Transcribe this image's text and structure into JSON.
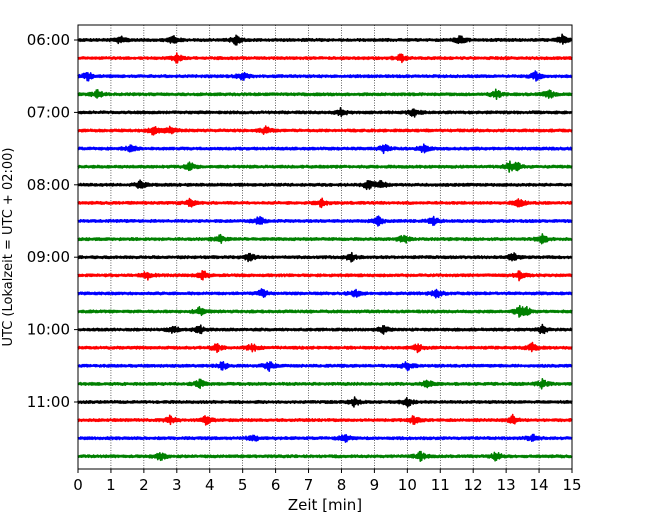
{
  "chart_data": {
    "type": "line",
    "xlabel": "Zeit  [min]",
    "ylabel": "UTC (Lokalzeit = UTC + 02:00)",
    "xlim": [
      0,
      15
    ],
    "x_ticks": [
      "0",
      "1",
      "2",
      "3",
      "4",
      "5",
      "6",
      "7",
      "8",
      "9",
      "10",
      "11",
      "12",
      "13",
      "14",
      "15"
    ],
    "y_ticks": [
      "06:00",
      "07:00",
      "08:00",
      "09:00",
      "10:00",
      "11:00"
    ],
    "grid": "vertical dotted at each minute",
    "trace_interval_min": 15,
    "color_cycle": [
      "#000000",
      "#ff0000",
      "#0000ff",
      "#008000"
    ],
    "traces": [
      {
        "start": "06:00",
        "events": [
          1.3,
          2.9,
          4.8,
          11.6,
          14.7
        ]
      },
      {
        "start": "06:15",
        "events": [
          3.0,
          9.8
        ]
      },
      {
        "start": "06:30",
        "events": [
          0.3,
          5.0,
          13.9
        ]
      },
      {
        "start": "06:45",
        "events": [
          0.6,
          12.7,
          14.3
        ]
      },
      {
        "start": "07:00",
        "events": [
          8.0,
          10.2
        ]
      },
      {
        "start": "07:15",
        "events": [
          2.3,
          2.8,
          5.7
        ]
      },
      {
        "start": "07:30",
        "events": [
          1.6,
          9.3,
          10.5
        ]
      },
      {
        "start": "07:45",
        "events": [
          3.4,
          13.1,
          13.3
        ]
      },
      {
        "start": "08:00",
        "events": [
          1.9,
          8.8,
          9.2
        ]
      },
      {
        "start": "08:15",
        "events": [
          3.4,
          7.4,
          13.4
        ]
      },
      {
        "start": "08:30",
        "events": [
          5.5,
          9.1,
          10.8
        ]
      },
      {
        "start": "08:45",
        "events": [
          4.3,
          9.9,
          14.1
        ]
      },
      {
        "start": "09:00",
        "events": [
          5.2,
          8.3,
          13.2
        ]
      },
      {
        "start": "09:15",
        "events": [
          2.1,
          3.8,
          13.4
        ]
      },
      {
        "start": "09:30",
        "events": [
          5.6,
          8.4,
          10.9
        ]
      },
      {
        "start": "09:45",
        "events": [
          3.7,
          13.4,
          13.6
        ]
      },
      {
        "start": "10:00",
        "events": [
          2.9,
          3.7,
          9.3,
          14.1
        ]
      },
      {
        "start": "10:15",
        "events": [
          4.2,
          5.3,
          10.3,
          13.8
        ]
      },
      {
        "start": "10:30",
        "events": [
          4.4,
          5.8,
          10.0
        ]
      },
      {
        "start": "10:45",
        "events": [
          3.7,
          10.6,
          14.1
        ]
      },
      {
        "start": "11:00",
        "events": [
          8.4,
          10.0
        ]
      },
      {
        "start": "11:15",
        "events": [
          2.8,
          3.9,
          10.2,
          13.2
        ]
      },
      {
        "start": "11:30",
        "events": [
          5.3,
          8.1,
          13.8
        ]
      },
      {
        "start": "11:45",
        "events": [
          2.5,
          10.4,
          12.7
        ]
      }
    ]
  }
}
